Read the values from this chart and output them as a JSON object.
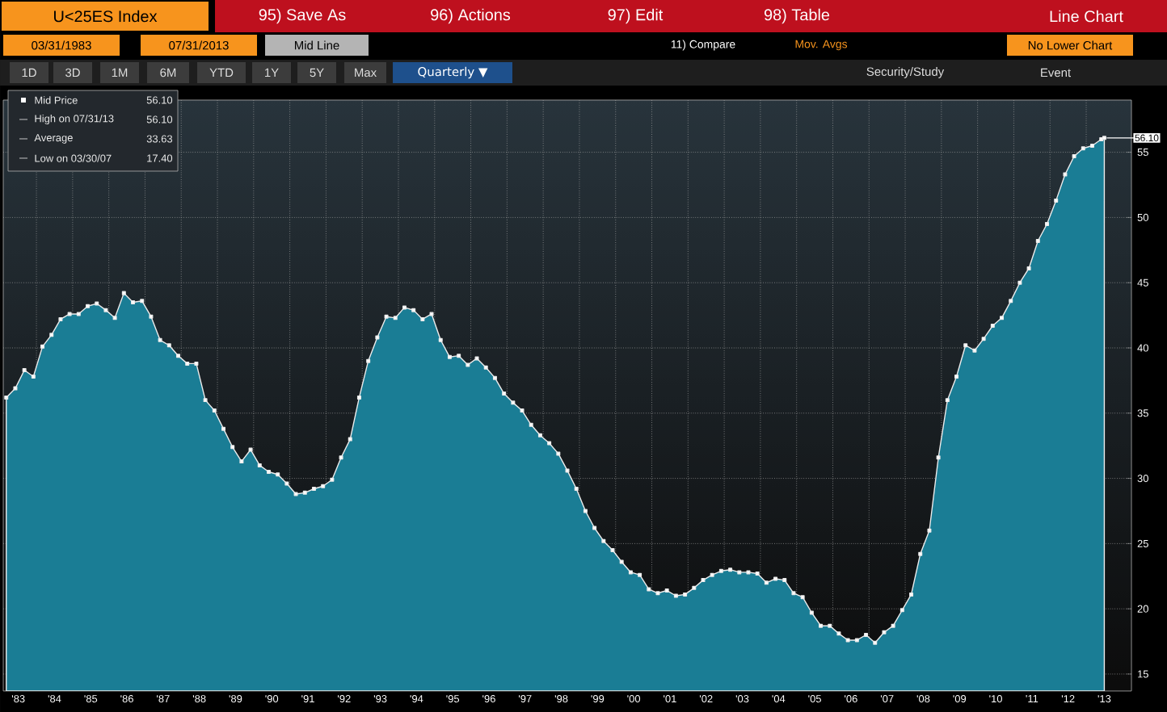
{
  "chart_data": {
    "type": "area",
    "title": "U<25ES Index",
    "x": [
      "1983-03",
      "1983-06",
      "1983-09",
      "1983-12",
      "1984-03",
      "1984-06",
      "1984-09",
      "1984-12",
      "1985-03",
      "1985-06",
      "1985-09",
      "1985-12",
      "1986-03",
      "1986-06",
      "1986-09",
      "1986-12",
      "1987-03",
      "1987-06",
      "1987-09",
      "1987-12",
      "1988-03",
      "1988-06",
      "1988-09",
      "1988-12",
      "1989-03",
      "1989-06",
      "1989-09",
      "1989-12",
      "1990-03",
      "1990-06",
      "1990-09",
      "1990-12",
      "1991-03",
      "1991-06",
      "1991-09",
      "1991-12",
      "1992-03",
      "1992-06",
      "1992-09",
      "1992-12",
      "1993-03",
      "1993-06",
      "1993-09",
      "1993-12",
      "1994-03",
      "1994-06",
      "1994-09",
      "1994-12",
      "1995-03",
      "1995-06",
      "1995-09",
      "1995-12",
      "1996-03",
      "1996-06",
      "1996-09",
      "1996-12",
      "1997-03",
      "1997-06",
      "1997-09",
      "1997-12",
      "1998-03",
      "1998-06",
      "1998-09",
      "1998-12",
      "1999-03",
      "1999-06",
      "1999-09",
      "1999-12",
      "2000-03",
      "2000-06",
      "2000-09",
      "2000-12",
      "2001-03",
      "2001-06",
      "2001-09",
      "2001-12",
      "2002-03",
      "2002-06",
      "2002-09",
      "2002-12",
      "2003-03",
      "2003-06",
      "2003-09",
      "2003-12",
      "2004-03",
      "2004-06",
      "2004-09",
      "2004-12",
      "2005-03",
      "2005-06",
      "2005-09",
      "2005-12",
      "2006-03",
      "2006-06",
      "2006-09",
      "2006-12",
      "2007-03",
      "2007-06",
      "2007-09",
      "2007-12",
      "2008-03",
      "2008-06",
      "2008-09",
      "2008-12",
      "2009-03",
      "2009-06",
      "2009-09",
      "2009-12",
      "2010-03",
      "2010-06",
      "2010-09",
      "2010-12",
      "2011-03",
      "2011-06",
      "2011-09",
      "2011-12",
      "2012-03",
      "2012-06",
      "2012-09",
      "2012-12",
      "2013-03",
      "2013-06",
      "2013-07"
    ],
    "series": [
      {
        "name": "Mid Price",
        "color": "#1a7d95",
        "values": [
          36.2,
          36.9,
          38.3,
          37.8,
          40.1,
          41.0,
          42.2,
          42.6,
          42.6,
          43.2,
          43.4,
          42.9,
          42.3,
          44.2,
          43.5,
          43.6,
          42.4,
          40.6,
          40.2,
          39.4,
          38.8,
          38.8,
          36.0,
          35.2,
          33.8,
          32.4,
          31.3,
          32.2,
          31.0,
          30.5,
          30.3,
          29.6,
          28.8,
          28.9,
          29.2,
          29.4,
          29.9,
          31.6,
          33.0,
          36.2,
          39.0,
          40.8,
          42.4,
          42.3,
          43.1,
          42.9,
          42.2,
          42.6,
          40.6,
          39.3,
          39.4,
          38.7,
          39.2,
          38.5,
          37.7,
          36.5,
          35.8,
          35.2,
          34.1,
          33.3,
          32.7,
          31.9,
          30.6,
          29.2,
          27.5,
          26.2,
          25.2,
          24.5,
          23.6,
          22.8,
          22.6,
          21.5,
          21.2,
          21.4,
          21.0,
          21.1,
          21.6,
          22.2,
          22.6,
          22.9,
          23.0,
          22.8,
          22.8,
          22.7,
          22.0,
          22.3,
          22.2,
          21.2,
          20.9,
          19.7,
          18.7,
          18.7,
          18.1,
          17.6,
          17.6,
          18.0,
          17.4,
          18.2,
          18.7,
          19.9,
          21.1,
          24.2,
          26.0,
          31.6,
          36.0,
          37.8,
          40.2,
          39.8,
          40.7,
          41.7,
          42.3,
          43.6,
          45.0,
          46.1,
          48.2,
          49.5,
          51.3,
          53.3,
          54.7,
          55.3,
          55.5,
          56.0,
          56.1
        ]
      }
    ],
    "xlim": [
      "1983-02",
      "2014-04"
    ],
    "xticks": [
      {
        "value": "1983-07",
        "label": "'83"
      },
      {
        "value": "1984-01",
        "label": null
      },
      {
        "value": "1984-07",
        "label": "'84"
      },
      {
        "value": "1985-01",
        "label": null
      },
      {
        "value": "1985-07",
        "label": "'85"
      },
      {
        "value": "1986-01",
        "label": null
      },
      {
        "value": "1986-07",
        "label": "'86"
      },
      {
        "value": "1987-01",
        "label": null
      },
      {
        "value": "1987-07",
        "label": "'87"
      },
      {
        "value": "1988-01",
        "label": null
      },
      {
        "value": "1988-07",
        "label": "'88"
      },
      {
        "value": "1989-01",
        "label": null
      },
      {
        "value": "1989-07",
        "label": "'89"
      },
      {
        "value": "1990-01",
        "label": null
      },
      {
        "value": "1990-07",
        "label": "'90"
      },
      {
        "value": "1991-01",
        "label": null
      },
      {
        "value": "1991-07",
        "label": "'91"
      },
      {
        "value": "1992-01",
        "label": null
      },
      {
        "value": "1992-07",
        "label": "'92"
      },
      {
        "value": "1993-01",
        "label": null
      },
      {
        "value": "1993-07",
        "label": "'93"
      },
      {
        "value": "1994-01",
        "label": null
      },
      {
        "value": "1994-07",
        "label": "'94"
      },
      {
        "value": "1995-01",
        "label": null
      },
      {
        "value": "1995-07",
        "label": "'95"
      },
      {
        "value": "1996-01",
        "label": null
      },
      {
        "value": "1996-07",
        "label": "'96"
      },
      {
        "value": "1997-01",
        "label": null
      },
      {
        "value": "1997-07",
        "label": "'97"
      },
      {
        "value": "1998-01",
        "label": null
      },
      {
        "value": "1998-07",
        "label": "'98"
      },
      {
        "value": "1999-01",
        "label": null
      },
      {
        "value": "1999-07",
        "label": "'99"
      },
      {
        "value": "2000-01",
        "label": null
      },
      {
        "value": "2000-07",
        "label": "'00"
      },
      {
        "value": "2001-01",
        "label": null
      },
      {
        "value": "2001-07",
        "label": "'01"
      },
      {
        "value": "2002-01",
        "label": null
      },
      {
        "value": "2002-07",
        "label": "'02"
      },
      {
        "value": "2003-01",
        "label": null
      },
      {
        "value": "2003-07",
        "label": "'03"
      },
      {
        "value": "2004-01",
        "label": null
      },
      {
        "value": "2004-07",
        "label": "'04"
      },
      {
        "value": "2005-01",
        "label": null
      },
      {
        "value": "2005-07",
        "label": "'05"
      },
      {
        "value": "2006-01",
        "label": null
      },
      {
        "value": "2006-07",
        "label": "'06"
      },
      {
        "value": "2007-01",
        "label": null
      },
      {
        "value": "2007-07",
        "label": "'07"
      },
      {
        "value": "2008-01",
        "label": null
      },
      {
        "value": "2008-07",
        "label": "'08"
      },
      {
        "value": "2009-01",
        "label": null
      },
      {
        "value": "2009-07",
        "label": "'09"
      },
      {
        "value": "2010-01",
        "label": null
      },
      {
        "value": "2010-07",
        "label": "'10"
      },
      {
        "value": "2011-01",
        "label": null
      },
      {
        "value": "2011-07",
        "label": "'11"
      },
      {
        "value": "2012-01",
        "label": null
      },
      {
        "value": "2012-07",
        "label": "'12"
      },
      {
        "value": "2013-01",
        "label": null
      },
      {
        "value": "2013-07",
        "label": "'13"
      }
    ],
    "ylim": [
      13.7,
      59
    ],
    "yticks": [
      15,
      20,
      25,
      30,
      35,
      40,
      45,
      50,
      55
    ],
    "grid": true,
    "legend": "top left",
    "marker": "square",
    "annotations": [
      "95) Save As",
      "96) Actions",
      "97) Edit",
      "98) Table",
      "Line Chart",
      "03/31/1983",
      "07/31/2013",
      "Mid Line",
      "11) Compare",
      "Mov. Avgs",
      "No Lower Chart",
      "1D",
      "3D",
      "1M",
      "6M",
      "YTD",
      "1Y",
      "5Y",
      "Max",
      "Quarterly ▼",
      "Security/Study",
      "Event",
      "56.10",
      "High on 07/31/13",
      "56.10",
      "Average",
      "33.63",
      "Low on 03/30/07",
      "17.40",
      {
        "text": "56.10",
        "x": "2013-07",
        "y": 56.1
      }
    ]
  }
}
